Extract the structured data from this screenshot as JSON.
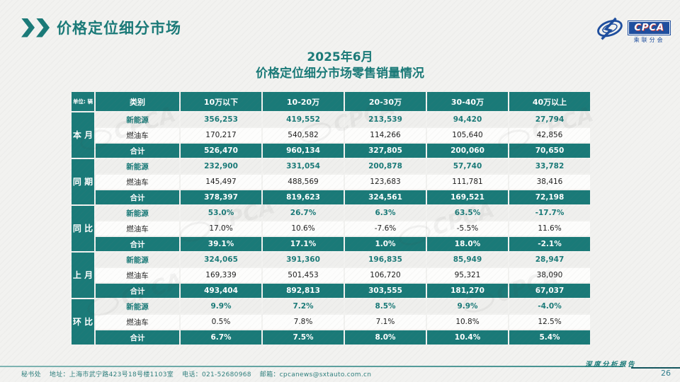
{
  "page": {
    "title": "价格定位细分市场",
    "page_number": "26",
    "report_badge": "深度分析报告"
  },
  "logo": {
    "name": "CPCA",
    "subtitle": "乘联分会"
  },
  "chart_title": {
    "line1": "2025年6月",
    "line2": "价格定位细分市场零售销量情况"
  },
  "table": {
    "unit_label": "单位: 辆",
    "category_header": "类别",
    "column_headers": [
      "10万以下",
      "10-20万",
      "20-30万",
      "30-40万",
      "40万以上"
    ],
    "blocks": [
      {
        "group": "本月",
        "rows": [
          {
            "label": "新能源",
            "type": "nev",
            "values": [
              "356,253",
              "419,552",
              "213,539",
              "94,420",
              "27,794"
            ]
          },
          {
            "label": "燃油车",
            "type": "ice",
            "values": [
              "170,217",
              "540,582",
              "114,266",
              "105,640",
              "42,856"
            ]
          },
          {
            "label": "合计",
            "type": "total",
            "values": [
              "526,470",
              "960,134",
              "327,805",
              "200,060",
              "70,650"
            ]
          }
        ]
      },
      {
        "group": "同期",
        "rows": [
          {
            "label": "新能源",
            "type": "nev",
            "values": [
              "232,900",
              "331,054",
              "200,878",
              "57,740",
              "33,782"
            ]
          },
          {
            "label": "燃油车",
            "type": "ice",
            "values": [
              "145,497",
              "488,569",
              "123,683",
              "111,781",
              "38,416"
            ]
          },
          {
            "label": "合计",
            "type": "total",
            "values": [
              "378,397",
              "819,623",
              "324,561",
              "169,521",
              "72,198"
            ]
          }
        ]
      },
      {
        "group": "同比",
        "rows": [
          {
            "label": "新能源",
            "type": "nev",
            "values": [
              "53.0%",
              "26.7%",
              "6.3%",
              "63.5%",
              "-17.7%"
            ]
          },
          {
            "label": "燃油车",
            "type": "ice",
            "values": [
              "17.0%",
              "10.6%",
              "-7.6%",
              "-5.5%",
              "11.6%"
            ]
          },
          {
            "label": "合计",
            "type": "total",
            "values": [
              "39.1%",
              "17.1%",
              "1.0%",
              "18.0%",
              "-2.1%"
            ]
          }
        ]
      },
      {
        "group": "上月",
        "rows": [
          {
            "label": "新能源",
            "type": "nev",
            "values": [
              "324,065",
              "391,360",
              "196,835",
              "85,949",
              "28,947"
            ]
          },
          {
            "label": "燃油车",
            "type": "ice",
            "values": [
              "169,339",
              "501,453",
              "106,720",
              "95,321",
              "38,090"
            ]
          },
          {
            "label": "合计",
            "type": "total",
            "values": [
              "493,404",
              "892,813",
              "303,555",
              "181,270",
              "67,037"
            ]
          }
        ]
      },
      {
        "group": "环比",
        "rows": [
          {
            "label": "新能源",
            "type": "nev",
            "values": [
              "9.9%",
              "7.2%",
              "8.5%",
              "9.9%",
              "-4.0%"
            ]
          },
          {
            "label": "燃油车",
            "type": "ice",
            "values": [
              "0.5%",
              "7.8%",
              "7.1%",
              "10.8%",
              "12.5%"
            ]
          },
          {
            "label": "合计",
            "type": "total",
            "values": [
              "6.7%",
              "7.5%",
              "8.0%",
              "10.4%",
              "5.4%"
            ]
          }
        ]
      }
    ]
  },
  "footer": {
    "secretariat": "秘书处",
    "address": "地址：上海市武宁路423号18号楼1103室",
    "phone": "电话：021-52680968",
    "email": "邮箱：cpcanews@sxtauto.com.cn"
  },
  "colors": {
    "accent_teal": "#1A7A78",
    "logo_blue": "#1E4E9E",
    "rule_dark": "#14565E"
  },
  "icons": {
    "header_icon": "double-chevron-icon",
    "logo_icon": "cpca-swoosh-icon",
    "watermark_icon": "cpca-watermark"
  }
}
